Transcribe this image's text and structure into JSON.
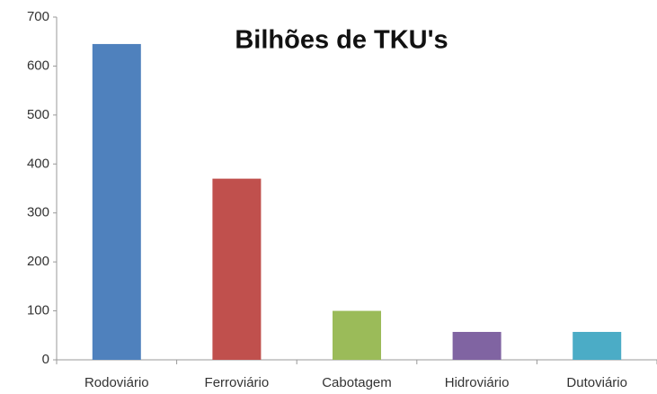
{
  "chart_data": {
    "type": "bar",
    "title": "Bilhões de TKU's",
    "categories": [
      "Rodoviário",
      "Ferroviário",
      "Cabotagem",
      "Hidroviário",
      "Dutoviário"
    ],
    "values": [
      645,
      370,
      100,
      57,
      57
    ],
    "colors": [
      "#4f81bd",
      "#c0504d",
      "#9bbb59",
      "#8064a2",
      "#4bacc6"
    ],
    "ylim": [
      0,
      700
    ],
    "yticks": [
      0,
      100,
      200,
      300,
      400,
      500,
      600,
      700
    ],
    "grid": false
  }
}
